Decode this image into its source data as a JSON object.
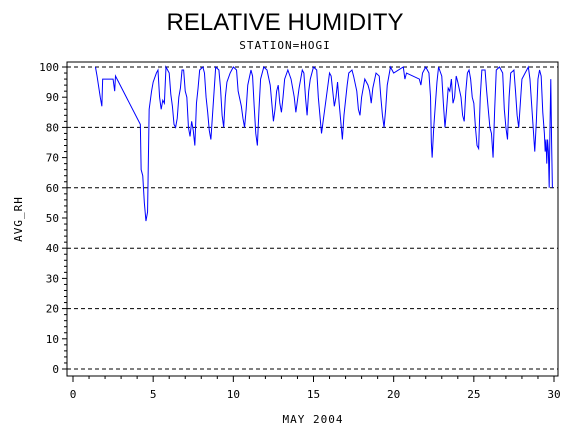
{
  "chart_data": {
    "type": "line",
    "title": "RELATIVE HUMIDITY",
    "subtitle": "STATION=HOGI",
    "xlabel": "MAY 2004",
    "ylabel": "AVG_RH",
    "xlim": [
      0,
      30
    ],
    "ylim": [
      0,
      100
    ],
    "xticks": [
      0,
      5,
      10,
      15,
      20,
      25,
      30
    ],
    "yticks": [
      0,
      10,
      20,
      30,
      40,
      50,
      60,
      70,
      80,
      90,
      100
    ],
    "reference_lines_y": [
      0,
      20,
      40,
      60,
      80,
      100
    ],
    "grid": "dashed horizontal",
    "line_color": "#0000ff",
    "series": [
      {
        "values": [
          [
            1.4,
            100
          ],
          [
            1.5,
            97
          ],
          [
            1.7,
            90
          ],
          [
            1.8,
            87
          ],
          [
            1.85,
            96
          ],
          [
            2.0,
            96
          ],
          [
            2.5,
            96
          ],
          [
            2.6,
            92
          ],
          [
            2.65,
            97
          ],
          [
            4.2,
            81
          ],
          [
            4.25,
            66
          ],
          [
            4.35,
            64
          ],
          [
            4.45,
            55
          ],
          [
            4.55,
            49
          ],
          [
            4.65,
            52
          ],
          [
            4.75,
            86
          ],
          [
            4.9,
            92
          ],
          [
            5.0,
            95
          ],
          [
            5.2,
            98
          ],
          [
            5.3,
            99
          ],
          [
            5.4,
            90
          ],
          [
            5.5,
            86
          ],
          [
            5.6,
            89
          ],
          [
            5.7,
            88
          ],
          [
            5.8,
            100
          ],
          [
            6.0,
            98
          ],
          [
            6.1,
            91
          ],
          [
            6.2,
            87
          ],
          [
            6.3,
            81
          ],
          [
            6.4,
            80
          ],
          [
            6.5,
            83
          ],
          [
            6.6,
            90
          ],
          [
            6.7,
            93
          ],
          [
            6.8,
            99
          ],
          [
            6.9,
            99
          ],
          [
            7.0,
            92
          ],
          [
            7.1,
            90
          ],
          [
            7.2,
            80
          ],
          [
            7.3,
            77
          ],
          [
            7.4,
            82
          ],
          [
            7.5,
            79
          ],
          [
            7.6,
            74
          ],
          [
            7.7,
            88
          ],
          [
            7.8,
            93
          ],
          [
            7.9,
            99
          ],
          [
            8.1,
            100
          ],
          [
            8.2,
            98
          ],
          [
            8.3,
            90
          ],
          [
            8.4,
            85
          ],
          [
            8.5,
            79
          ],
          [
            8.6,
            76
          ],
          [
            8.7,
            84
          ],
          [
            8.8,
            92
          ],
          [
            8.9,
            100
          ],
          [
            9.1,
            99
          ],
          [
            9.2,
            93
          ],
          [
            9.3,
            84
          ],
          [
            9.4,
            80
          ],
          [
            9.5,
            90
          ],
          [
            9.6,
            95
          ],
          [
            9.8,
            98
          ],
          [
            10.0,
            100
          ],
          [
            10.2,
            99
          ],
          [
            10.3,
            92
          ],
          [
            10.5,
            87
          ],
          [
            10.6,
            83
          ],
          [
            10.7,
            80
          ],
          [
            10.8,
            86
          ],
          [
            10.9,
            94
          ],
          [
            11.1,
            99
          ],
          [
            11.2,
            97
          ],
          [
            11.3,
            87
          ],
          [
            11.4,
            78
          ],
          [
            11.5,
            74
          ],
          [
            11.6,
            86
          ],
          [
            11.7,
            96
          ],
          [
            11.9,
            100
          ],
          [
            12.1,
            99
          ],
          [
            12.3,
            94
          ],
          [
            12.4,
            88
          ],
          [
            12.5,
            82
          ],
          [
            12.6,
            86
          ],
          [
            12.7,
            92
          ],
          [
            12.8,
            94
          ],
          [
            12.9,
            88
          ],
          [
            13.0,
            85
          ],
          [
            13.1,
            90
          ],
          [
            13.2,
            96
          ],
          [
            13.4,
            99
          ],
          [
            13.6,
            96
          ],
          [
            13.8,
            90
          ],
          [
            13.9,
            85
          ],
          [
            14.1,
            93
          ],
          [
            14.3,
            99
          ],
          [
            14.4,
            98
          ],
          [
            14.5,
            90
          ],
          [
            14.6,
            84
          ],
          [
            14.7,
            92
          ],
          [
            14.8,
            96
          ],
          [
            15.0,
            100
          ],
          [
            15.2,
            99
          ],
          [
            15.3,
            90
          ],
          [
            15.4,
            84
          ],
          [
            15.5,
            78
          ],
          [
            15.6,
            82
          ],
          [
            15.8,
            90
          ],
          [
            16.0,
            98
          ],
          [
            16.1,
            97
          ],
          [
            16.2,
            92
          ],
          [
            16.3,
            87
          ],
          [
            16.4,
            90
          ],
          [
            16.5,
            95
          ],
          [
            16.6,
            88
          ],
          [
            16.7,
            82
          ],
          [
            16.8,
            76
          ],
          [
            16.9,
            84
          ],
          [
            17.1,
            94
          ],
          [
            17.2,
            98
          ],
          [
            17.4,
            99
          ],
          [
            17.5,
            97
          ],
          [
            17.7,
            92
          ],
          [
            17.8,
            86
          ],
          [
            17.9,
            84
          ],
          [
            18.0,
            90
          ],
          [
            18.2,
            96
          ],
          [
            18.4,
            94
          ],
          [
            18.5,
            92
          ],
          [
            18.6,
            88
          ],
          [
            18.7,
            93
          ],
          [
            18.9,
            98
          ],
          [
            19.1,
            97
          ],
          [
            19.2,
            90
          ],
          [
            19.3,
            84
          ],
          [
            19.4,
            80
          ],
          [
            19.5,
            86
          ],
          [
            19.6,
            94
          ],
          [
            19.8,
            100
          ],
          [
            19.9,
            99
          ],
          [
            20.0,
            98
          ],
          [
            20.6,
            100
          ],
          [
            20.7,
            96
          ],
          [
            20.8,
            98
          ],
          [
            21.6,
            96
          ],
          [
            21.7,
            94
          ],
          [
            21.8,
            98
          ],
          [
            22.0,
            100
          ],
          [
            22.2,
            98
          ],
          [
            22.3,
            90
          ],
          [
            22.35,
            75
          ],
          [
            22.4,
            70
          ],
          [
            22.5,
            80
          ],
          [
            22.7,
            95
          ],
          [
            22.8,
            100
          ],
          [
            23.0,
            97
          ],
          [
            23.1,
            88
          ],
          [
            23.2,
            80
          ],
          [
            23.3,
            86
          ],
          [
            23.4,
            93
          ],
          [
            23.5,
            92
          ],
          [
            23.6,
            96
          ],
          [
            23.7,
            88
          ],
          [
            23.8,
            90
          ],
          [
            23.9,
            97
          ],
          [
            24.0,
            95
          ],
          [
            24.2,
            90
          ],
          [
            24.3,
            84
          ],
          [
            24.4,
            82
          ],
          [
            24.5,
            92
          ],
          [
            24.6,
            98
          ],
          [
            24.7,
            99
          ],
          [
            24.8,
            96
          ],
          [
            24.9,
            90
          ],
          [
            25.0,
            88
          ],
          [
            25.1,
            80
          ],
          [
            25.2,
            74
          ],
          [
            25.3,
            73
          ],
          [
            25.4,
            90
          ],
          [
            25.5,
            99
          ],
          [
            25.7,
            99
          ],
          [
            25.8,
            92
          ],
          [
            25.9,
            86
          ],
          [
            26.0,
            80
          ],
          [
            26.1,
            78
          ],
          [
            26.2,
            70
          ],
          [
            26.3,
            86
          ],
          [
            26.4,
            99
          ],
          [
            26.6,
            100
          ],
          [
            26.8,
            98
          ],
          [
            26.9,
            86
          ],
          [
            27.0,
            80
          ],
          [
            27.1,
            76
          ],
          [
            27.2,
            90
          ],
          [
            27.3,
            98
          ],
          [
            27.5,
            99
          ],
          [
            27.6,
            92
          ],
          [
            27.7,
            84
          ],
          [
            27.8,
            80
          ],
          [
            27.9,
            88
          ],
          [
            28.0,
            96
          ],
          [
            28.2,
            98
          ],
          [
            28.4,
            100
          ],
          [
            28.5,
            96
          ],
          [
            28.6,
            88
          ],
          [
            28.7,
            80
          ],
          [
            28.8,
            72
          ],
          [
            28.9,
            82
          ],
          [
            29.0,
            96
          ],
          [
            29.1,
            99
          ],
          [
            29.2,
            97
          ],
          [
            29.3,
            85
          ],
          [
            29.4,
            78
          ],
          [
            29.45,
            72
          ],
          [
            29.5,
            76
          ],
          [
            29.55,
            68
          ],
          [
            29.6,
            76
          ],
          [
            29.65,
            72
          ],
          [
            29.7,
            60
          ],
          [
            29.75,
            80
          ],
          [
            29.8,
            96
          ],
          [
            29.85,
            75
          ],
          [
            29.9,
            60
          ]
        ]
      }
    ]
  }
}
